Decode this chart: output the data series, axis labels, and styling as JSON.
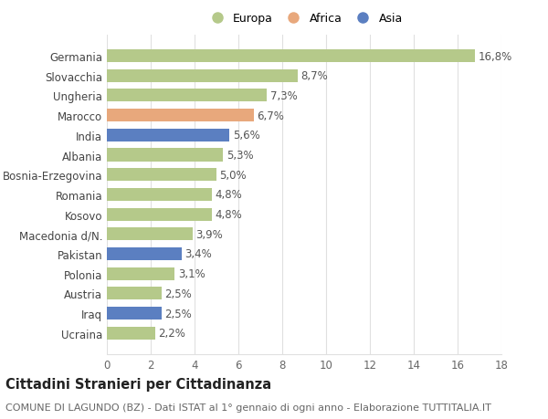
{
  "countries": [
    "Ucraina",
    "Iraq",
    "Austria",
    "Polonia",
    "Pakistan",
    "Macedonia d/N.",
    "Kosovo",
    "Romania",
    "Bosnia-Erzegovina",
    "Albania",
    "India",
    "Marocco",
    "Ungheria",
    "Slovacchia",
    "Germania"
  ],
  "values": [
    2.2,
    2.5,
    2.5,
    3.1,
    3.4,
    3.9,
    4.8,
    4.8,
    5.0,
    5.3,
    5.6,
    6.7,
    7.3,
    8.7,
    16.8
  ],
  "labels": [
    "2,2%",
    "2,5%",
    "2,5%",
    "3,1%",
    "3,4%",
    "3,9%",
    "4,8%",
    "4,8%",
    "5,0%",
    "5,3%",
    "5,6%",
    "6,7%",
    "7,3%",
    "8,7%",
    "16,8%"
  ],
  "colors": [
    "#b5c98a",
    "#5b7fc1",
    "#b5c98a",
    "#b5c98a",
    "#5b7fc1",
    "#b5c98a",
    "#b5c98a",
    "#b5c98a",
    "#b5c98a",
    "#b5c98a",
    "#5b7fc1",
    "#e8a87c",
    "#b5c98a",
    "#b5c98a",
    "#b5c98a"
  ],
  "legend_labels": [
    "Europa",
    "Africa",
    "Asia"
  ],
  "legend_colors": [
    "#b5c98a",
    "#e8a87c",
    "#5b7fc1"
  ],
  "title": "Cittadini Stranieri per Cittadinanza",
  "subtitle": "COMUNE DI LAGUNDO (BZ) - Dati ISTAT al 1° gennaio di ogni anno - Elaborazione TUTTITALIA.IT",
  "xlim": [
    0,
    18
  ],
  "xticks": [
    0,
    2,
    4,
    6,
    8,
    10,
    12,
    14,
    16,
    18
  ],
  "background_color": "#ffffff",
  "grid_color": "#e0e0e0",
  "bar_height": 0.65,
  "label_fontsize": 8.5,
  "tick_fontsize": 8.5,
  "title_fontsize": 10.5,
  "subtitle_fontsize": 8
}
